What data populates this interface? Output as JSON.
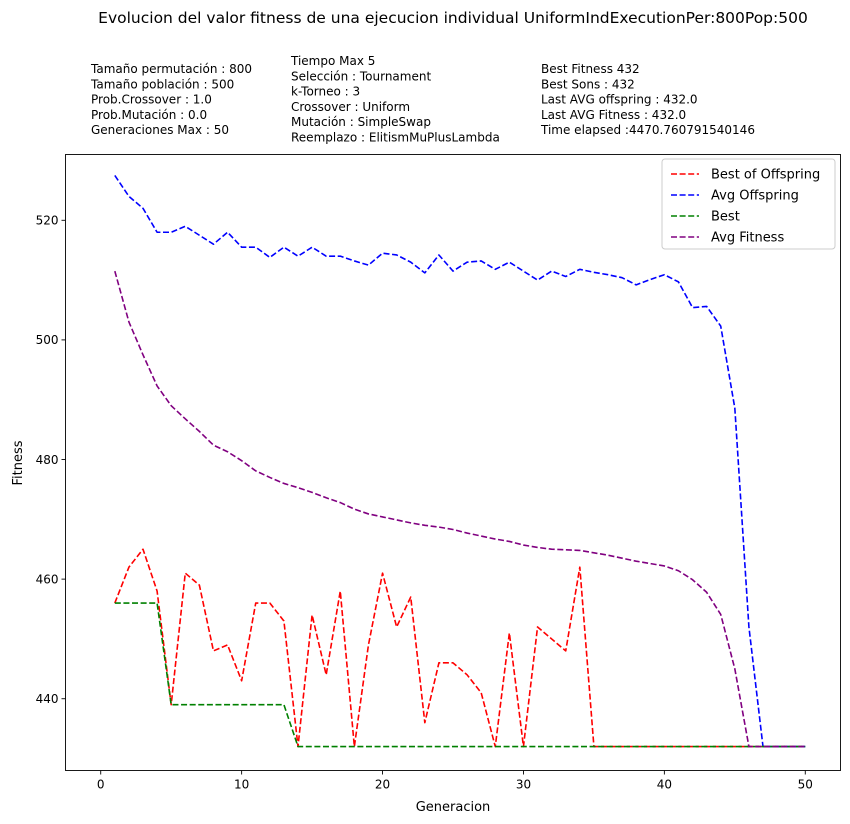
{
  "chart_data": {
    "type": "line",
    "title": "Evolucion del valor fitness de una ejecucion individual UniformIndExecutionPer:800Pop:500",
    "xlabel": "Generacion",
    "ylabel": "Fitness",
    "xlim": [
      -2.5,
      52.5
    ],
    "ylim": [
      428,
      531
    ],
    "xticks": [
      0,
      10,
      20,
      30,
      40,
      50
    ],
    "yticks": [
      440,
      460,
      480,
      500,
      520
    ],
    "grid": false,
    "legend": "top-right",
    "info_columns": [
      [
        "Tamaño permutación : 800",
        "Tamaño población : 500",
        "Prob.Crossover : 1.0",
        "Prob.Mutación : 0.0",
        "Generaciones Max : 50"
      ],
      [
        "Tiempo Max 5",
        "Selección : Tournament",
        "k-Torneo : 3",
        "Crossover : Uniform",
        "Mutación : SimpleSwap",
        "Reemplazo : ElitismMuPlusLambda"
      ],
      [
        "Best Fitness 432",
        "Best Sons : 432",
        "Last AVG offspring : 432.0",
        "Last AVG Fitness : 432.0",
        "Time elapsed :4470.760791540146"
      ]
    ],
    "x": [
      1,
      2,
      3,
      4,
      5,
      6,
      7,
      8,
      9,
      10,
      11,
      12,
      13,
      14,
      15,
      16,
      17,
      18,
      19,
      20,
      21,
      22,
      23,
      24,
      25,
      26,
      27,
      28,
      29,
      30,
      31,
      32,
      33,
      34,
      35,
      36,
      37,
      38,
      39,
      40,
      41,
      42,
      43,
      44,
      45,
      46,
      47,
      48,
      49,
      50
    ],
    "series": [
      {
        "name": "Best of Offspring",
        "color": "#ff0000",
        "values": [
          456,
          462,
          465,
          458,
          439,
          461,
          459,
          448,
          449,
          443,
          456,
          456,
          453,
          432,
          454,
          444,
          458,
          432,
          449,
          461,
          452,
          457,
          436,
          446,
          446,
          444,
          441,
          432,
          451,
          432,
          452,
          450,
          448,
          462,
          432,
          432,
          432,
          432,
          432,
          432,
          432,
          432,
          432,
          432,
          432,
          432,
          432,
          432,
          432,
          432
        ]
      },
      {
        "name": "Avg Offspring",
        "color": "#0000ff",
        "values": [
          527.5,
          524,
          522,
          518,
          518,
          519,
          517.5,
          516,
          518,
          515.5,
          515.5,
          513.8,
          515.5,
          514,
          515.5,
          514,
          514,
          513.2,
          512.5,
          514.5,
          514.2,
          513,
          511.2,
          514.2,
          511.5,
          513,
          513.2,
          511.8,
          513,
          511.5,
          510,
          511.5,
          510.6,
          511.8,
          511.3,
          510.9,
          510.4,
          509.2,
          510.1,
          510.9,
          509.7,
          505.4,
          505.6,
          502.3,
          488.6,
          452,
          432,
          432,
          432,
          432
        ]
      },
      {
        "name": "Best",
        "color": "#008000",
        "values": [
          456,
          456,
          456,
          456,
          439,
          439,
          439,
          439,
          439,
          439,
          439,
          439,
          439,
          432,
          432,
          432,
          432,
          432,
          432,
          432,
          432,
          432,
          432,
          432,
          432,
          432,
          432,
          432,
          432,
          432,
          432,
          432,
          432,
          432,
          432,
          432,
          432,
          432,
          432,
          432,
          432,
          432,
          432,
          432,
          432,
          432,
          432,
          432,
          432,
          432
        ]
      },
      {
        "name": "Avg Fitness",
        "color": "#800080",
        "values": [
          511.5,
          503,
          497.5,
          492.3,
          489,
          486.8,
          484.7,
          482.4,
          481.3,
          479.8,
          478.1,
          477,
          476,
          475.3,
          474.5,
          473.6,
          472.8,
          471.7,
          470.9,
          470.4,
          469.9,
          469.4,
          469,
          468.7,
          468.3,
          467.7,
          467.2,
          466.7,
          466.3,
          465.7,
          465.3,
          465,
          464.9,
          464.8,
          464.4,
          464,
          463.5,
          463,
          462.6,
          462.2,
          461.4,
          459.9,
          457.8,
          454.1,
          445,
          432,
          432,
          432,
          432,
          432
        ]
      }
    ]
  }
}
